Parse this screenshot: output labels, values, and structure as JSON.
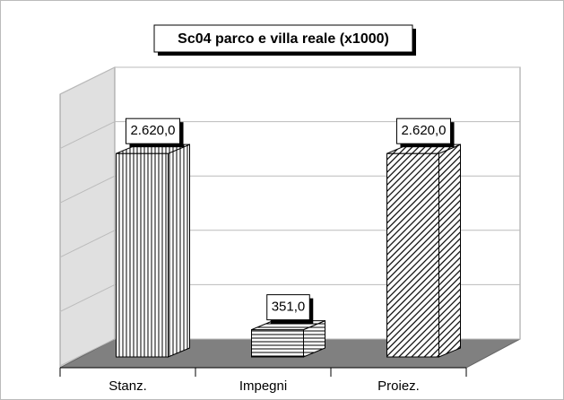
{
  "chart_data": {
    "type": "bar3d",
    "title": "Sc04 parco e villa reale (x1000)",
    "categories": [
      "Stanz.",
      "Impegni",
      "Proiez."
    ],
    "values": [
      2620,
      351,
      2620
    ],
    "value_labels": [
      "2.620,0",
      "351,0",
      "2.620,0"
    ],
    "ylim": [
      0,
      3500
    ],
    "yticks": [
      0,
      700,
      1400,
      2100,
      2800,
      3500
    ],
    "grid": true
  }
}
